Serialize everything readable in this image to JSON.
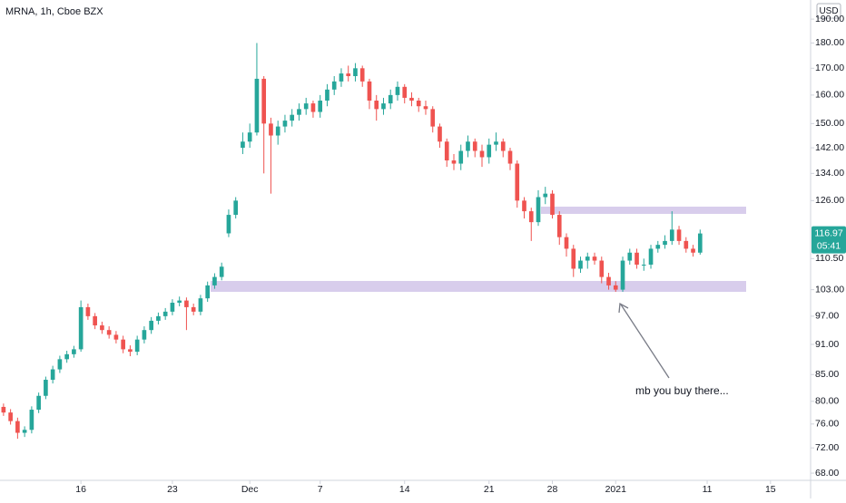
{
  "chart_data": {
    "type": "candlestick",
    "title": "MRNA, 1h, Cboe BZX",
    "currency": "USD",
    "countdown": "05:41",
    "annotation": "mb you buy there...",
    "log_scale": true,
    "grid": false,
    "up_color": "#26a69a",
    "down_color": "#ef5350",
    "x": [
      0,
      1,
      2,
      3,
      4,
      5,
      6,
      7,
      8,
      9,
      10,
      11,
      12,
      13,
      14,
      15,
      16,
      17,
      18,
      19,
      20,
      21,
      22,
      23,
      24,
      25,
      26,
      27,
      28,
      29,
      30,
      31,
      32,
      33,
      34,
      35,
      36,
      37,
      38,
      39,
      40,
      41,
      42,
      43,
      44,
      45,
      46,
      47,
      48,
      49,
      50,
      51,
      52,
      53,
      54,
      55,
      56,
      57,
      58,
      59,
      60,
      61,
      62,
      63,
      64,
      65,
      66,
      67,
      68,
      69,
      70,
      71,
      72,
      73,
      74,
      75,
      76,
      77,
      78,
      79,
      80,
      81,
      82,
      83,
      84,
      85,
      86,
      87,
      88,
      89,
      90,
      91,
      92,
      93,
      94,
      95,
      96,
      97,
      98,
      99
    ],
    "open": [
      79,
      78,
      76.5,
      74.5,
      75,
      78.5,
      81,
      84,
      86,
      88,
      89,
      90,
      99,
      97,
      95,
      94,
      93,
      92,
      90,
      89.5,
      92,
      94,
      96,
      97,
      98,
      100,
      100.5,
      99,
      98,
      101,
      104,
      106,
      117,
      122,
      142,
      144,
      147,
      166,
      150,
      146,
      149,
      151,
      153,
      155,
      157,
      154,
      158,
      162,
      165,
      168,
      167,
      170,
      165,
      158,
      155,
      157,
      160,
      163,
      159,
      158,
      156,
      155,
      149,
      144,
      138,
      137,
      141,
      144,
      141,
      139,
      143,
      144,
      141,
      137,
      126,
      123,
      120,
      127,
      128,
      122,
      116,
      113,
      108,
      110,
      111,
      110,
      106,
      104,
      103,
      110,
      112,
      109,
      109,
      113,
      114,
      115,
      118,
      115,
      113,
      112
    ],
    "high": [
      79.6,
      78.6,
      77.1,
      75.6,
      79.1,
      81.6,
      84.6,
      86.7,
      88.7,
      89.7,
      90.7,
      100.5,
      99.8,
      97.7,
      95.8,
      94.8,
      93.8,
      92.8,
      90.8,
      92.8,
      94.8,
      96.8,
      97.8,
      98.8,
      100.8,
      101.4,
      101.2,
      99.8,
      101.8,
      104.9,
      106.9,
      109.5,
      123.5,
      127,
      147,
      150,
      180,
      167,
      152,
      151,
      153,
      155,
      157,
      159,
      158,
      160,
      164,
      167,
      170,
      171,
      172,
      171,
      166,
      160,
      159,
      162,
      165,
      164,
      161,
      159,
      158,
      156,
      150,
      145,
      140,
      143,
      146,
      145,
      143,
      145,
      147,
      145,
      142,
      138,
      127,
      124,
      129,
      130,
      129,
      123,
      117,
      114,
      111,
      112,
      112,
      111,
      107,
      105,
      111,
      113,
      113,
      110.5,
      114,
      115,
      116.5,
      123,
      119,
      116,
      114,
      118
    ],
    "low": [
      77.4,
      75.9,
      73.5,
      73.8,
      74.4,
      77.9,
      80.4,
      83.3,
      85.3,
      87.3,
      88.3,
      89.5,
      96.2,
      94.2,
      93.2,
      92.2,
      91.2,
      89.2,
      88.6,
      88.8,
      91.2,
      93.2,
      95.2,
      96.2,
      97.2,
      99.2,
      94,
      97.2,
      97.2,
      100.2,
      103.2,
      105.2,
      116,
      121,
      140,
      142,
      146,
      134,
      128,
      143,
      147,
      149,
      151,
      153,
      152,
      152,
      156,
      160,
      163,
      165,
      165,
      163,
      155,
      151,
      153,
      155,
      158,
      157,
      156,
      154,
      153,
      147,
      142,
      136,
      135,
      135,
      139,
      139,
      136,
      137,
      141,
      139,
      135,
      124,
      121,
      115,
      119,
      125,
      121,
      114,
      111,
      106,
      107,
      108,
      109,
      104.5,
      103,
      102.5,
      102.5,
      109,
      108,
      107.5,
      108,
      112,
      113,
      114,
      114,
      112,
      111,
      111.5
    ],
    "close": [
      78,
      76.5,
      74.5,
      75,
      78.5,
      81,
      84,
      86,
      88,
      89,
      90,
      99,
      97,
      95,
      94,
      93,
      92,
      90,
      89.5,
      92,
      94,
      96,
      97,
      98,
      100,
      100.5,
      99,
      98,
      101,
      104,
      106,
      108.5,
      122,
      126,
      144,
      147,
      166,
      150,
      146,
      149,
      151,
      153,
      155,
      157,
      154,
      158,
      162,
      165,
      168,
      167,
      170,
      165,
      158,
      155,
      157,
      160,
      163,
      159,
      158,
      156,
      155,
      149,
      144,
      138,
      137,
      141,
      144,
      141,
      139,
      143,
      144,
      141,
      137,
      126,
      123,
      120,
      127,
      128,
      122,
      116,
      113,
      108,
      110,
      111,
      110,
      106,
      104,
      103,
      110,
      112,
      109,
      109,
      113,
      114,
      115,
      118,
      115,
      113,
      112,
      116.97
    ],
    "xlim": [
      -0.5,
      114.7
    ],
    "xticks": [
      {
        "value": 11,
        "label": "16"
      },
      {
        "value": 24,
        "label": "23"
      },
      {
        "value": 35,
        "label": "Dec"
      },
      {
        "value": 45,
        "label": "7"
      },
      {
        "value": 57,
        "label": "14"
      },
      {
        "value": 69,
        "label": "21"
      },
      {
        "value": 78,
        "label": "28"
      },
      {
        "value": 87,
        "label": "2021"
      },
      {
        "value": 100,
        "label": "11"
      },
      {
        "value": 109,
        "label": "15"
      }
    ],
    "ylim": [
      66.9,
      198.4
    ],
    "yticks": [
      {
        "value": 68,
        "label": "68.00"
      },
      {
        "value": 72,
        "label": "72.00"
      },
      {
        "value": 76,
        "label": "76.00"
      },
      {
        "value": 80,
        "label": "80.00"
      },
      {
        "value": 85,
        "label": "85.00"
      },
      {
        "value": 91,
        "label": "91.00"
      },
      {
        "value": 97,
        "label": "97.00"
      },
      {
        "value": 103,
        "label": "103.00"
      },
      {
        "value": 110.5,
        "label": "110.50"
      },
      {
        "value": 126,
        "label": "126.00"
      },
      {
        "value": 134,
        "label": "134.00"
      },
      {
        "value": 142,
        "label": "142.00"
      },
      {
        "value": 150,
        "label": "150.00"
      },
      {
        "value": 160,
        "label": "160.00"
      },
      {
        "value": 170,
        "label": "170.00"
      },
      {
        "value": 180,
        "label": "180.00"
      },
      {
        "value": 190,
        "label": "190.00"
      }
    ]
  }
}
